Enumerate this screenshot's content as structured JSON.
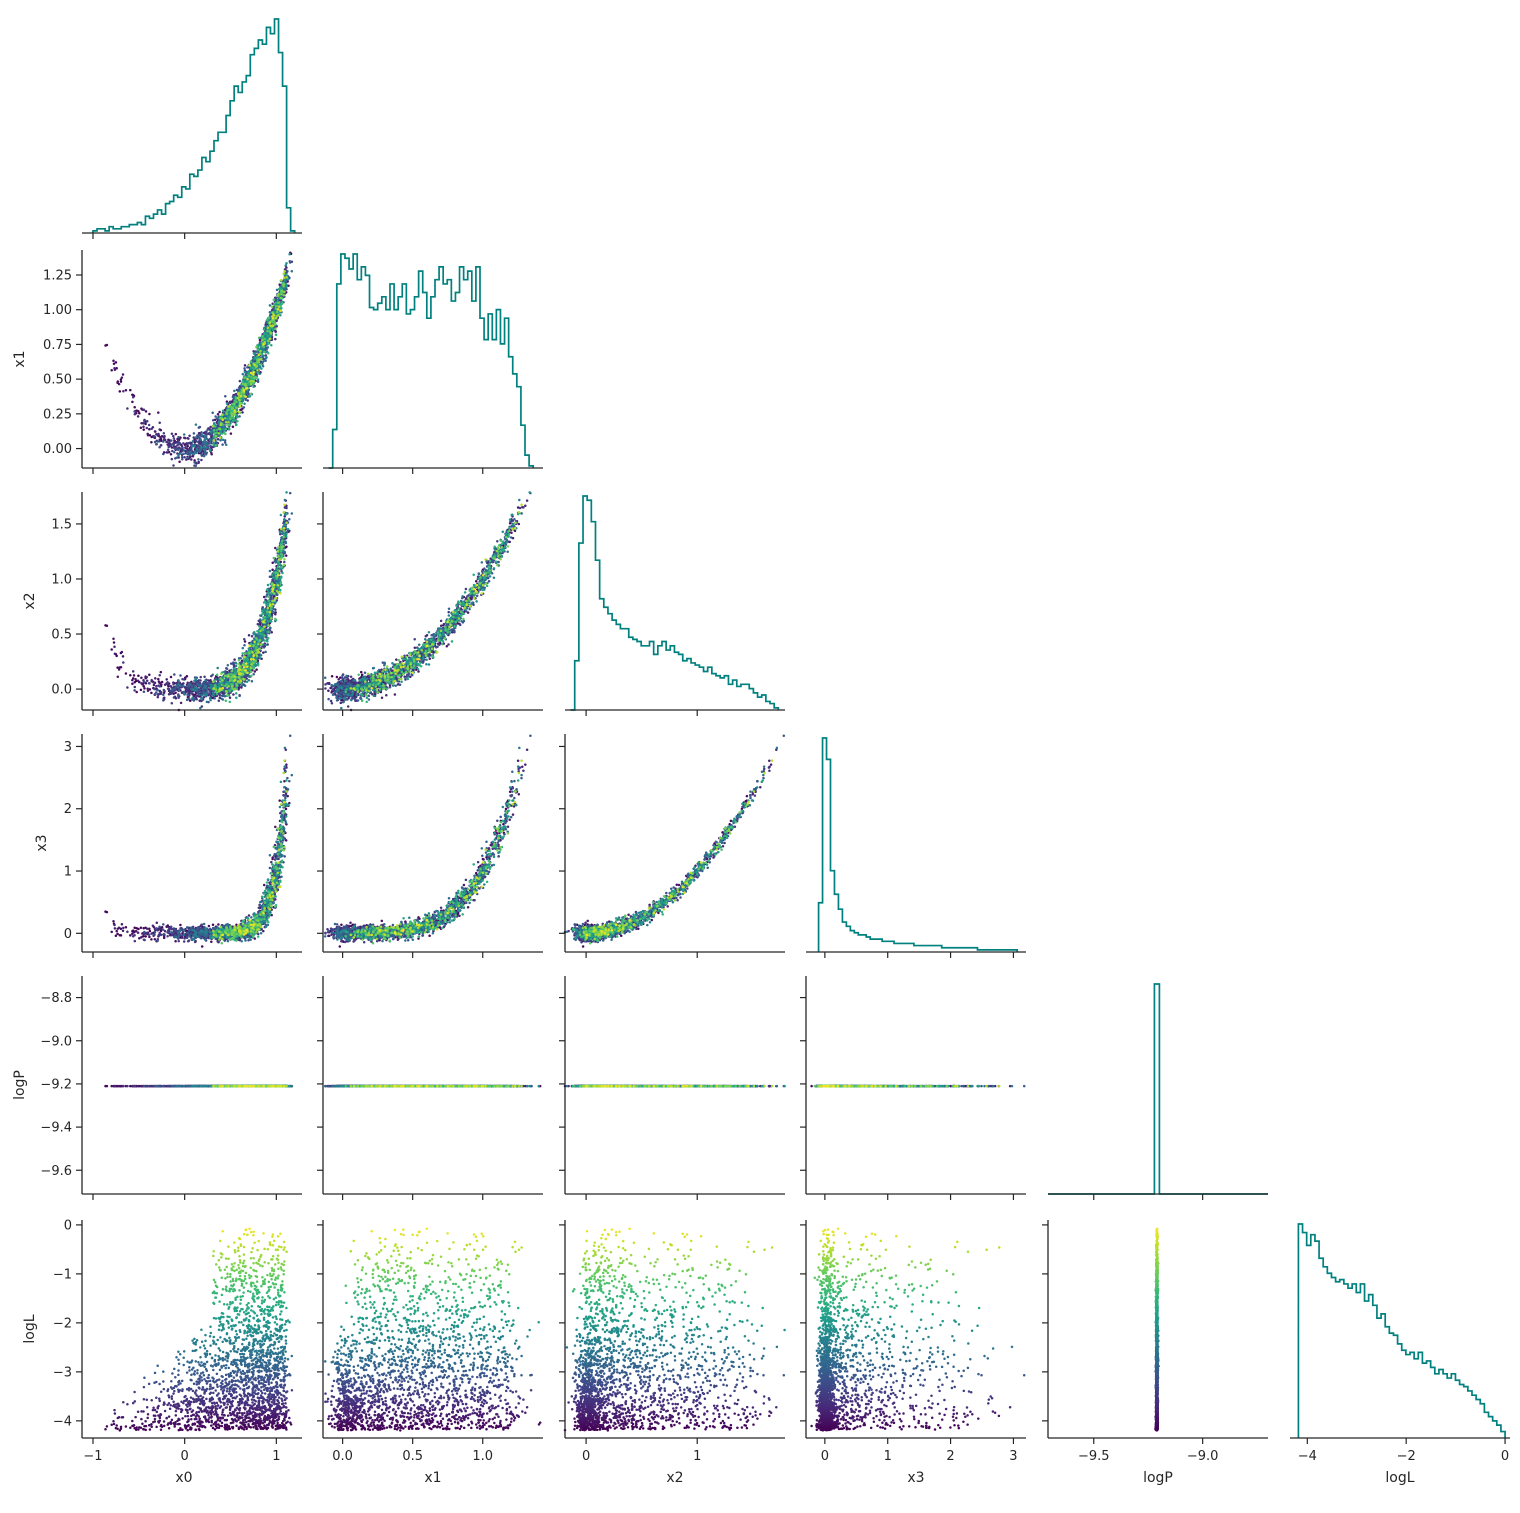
{
  "chart_data": {
    "type": "corner",
    "variables": [
      "x0",
      "x1",
      "x2",
      "x3",
      "logP",
      "logL"
    ],
    "axis_labels": [
      "x0",
      "x1",
      "x2",
      "x3",
      "logP",
      "logL"
    ],
    "ranges": {
      "x0": [
        -1.12,
        1.28
      ],
      "x1": [
        -0.14,
        1.43
      ],
      "x2": [
        -0.19,
        1.79
      ],
      "x3": [
        -0.3,
        3.2
      ],
      "logP": [
        -9.71,
        -8.7
      ],
      "logL": [
        -4.35,
        0.1
      ]
    },
    "ticks": {
      "x0": {
        "values": [
          -1,
          0,
          1
        ],
        "labels": [
          "−1",
          "0",
          "1"
        ]
      },
      "x1": {
        "values": [
          0.0,
          0.5,
          1.0
        ],
        "labels": [
          "0.0",
          "0.5",
          "1.0"
        ]
      },
      "x1_left": {
        "values": [
          0.0,
          0.25,
          0.5,
          0.75,
          1.0,
          1.25
        ],
        "labels": [
          "0.00",
          "0.25",
          "0.50",
          "0.75",
          "1.00",
          "1.25"
        ]
      },
      "x2": {
        "values": [
          0,
          1
        ],
        "labels": [
          "0",
          "1"
        ]
      },
      "x2_left": {
        "values": [
          0.0,
          0.5,
          1.0,
          1.5
        ],
        "labels": [
          "0.0",
          "0.5",
          "1.0",
          "1.5"
        ]
      },
      "x3": {
        "values": [
          0,
          1,
          2,
          3
        ],
        "labels": [
          "0",
          "1",
          "2",
          "3"
        ]
      },
      "logP_x": {
        "values": [
          -9.5,
          -9.0
        ],
        "labels": [
          "−9.5",
          "−9.0"
        ]
      },
      "logP_left": {
        "values": [
          -9.6,
          -9.4,
          -9.2,
          -9.0,
          -8.8
        ],
        "labels": [
          "−9.6",
          "−9.4",
          "−9.2",
          "−9.0",
          "−8.8"
        ]
      },
      "logL": {
        "values": [
          -4,
          -2,
          0
        ],
        "labels": [
          "−4",
          "−2",
          "0"
        ]
      },
      "logL_left": {
        "values": [
          -4,
          -3,
          -2,
          -1,
          0
        ],
        "labels": [
          "−4",
          "−3",
          "−2",
          "−1",
          "0"
        ]
      }
    },
    "logP_constant": -9.21,
    "histograms": {
      "x0": {
        "range": [
          -1.0,
          1.2
        ],
        "bins": 50,
        "counts": [
          1,
          2,
          2,
          1,
          3,
          2,
          2,
          3,
          3,
          4,
          4,
          5,
          4,
          8,
          7,
          9,
          11,
          9,
          14,
          15,
          18,
          17,
          22,
          21,
          28,
          27,
          30,
          36,
          34,
          39,
          44,
          48,
          48,
          56,
          63,
          70,
          67,
          72,
          75,
          85,
          88,
          92,
          90,
          98,
          95,
          102,
          86,
          70,
          12,
          1
        ]
      },
      "x1": {
        "range": [
          -0.1,
          1.36
        ],
        "bins": 50,
        "counts": [
          0,
          18,
          86,
          100,
          98,
          93,
          100,
          88,
          94,
          90,
          75,
          74,
          77,
          80,
          74,
          86,
          74,
          80,
          86,
          72,
          74,
          80,
          92,
          82,
          70,
          80,
          88,
          94,
          86,
          88,
          78,
          82,
          94,
          88,
          92,
          78,
          94,
          70,
          60,
          72,
          60,
          74,
          58,
          70,
          52,
          44,
          38,
          20,
          6,
          1
        ]
      },
      "x2": {
        "range": [
          -0.14,
          1.73
        ],
        "bins": 50,
        "counts": [
          0,
          23,
          78,
          100,
          98,
          88,
          70,
          52,
          48,
          45,
          42,
          40,
          38,
          38,
          34,
          33,
          32,
          30,
          30,
          32,
          26,
          30,
          32,
          28,
          30,
          27,
          26,
          23,
          24,
          22,
          21,
          20,
          18,
          20,
          17,
          16,
          15,
          16,
          12,
          14,
          11,
          12,
          12,
          10,
          8,
          6,
          7,
          4,
          3,
          1
        ]
      },
      "x3": {
        "range": [
          -0.1,
          3.06
        ],
        "bins": 50,
        "counts": [
          23,
          100,
          90,
          38,
          27,
          20,
          14,
          12,
          10,
          9,
          8,
          8,
          7,
          6,
          6,
          6,
          5,
          5,
          5,
          4,
          4,
          4,
          4,
          4,
          3,
          3,
          3,
          3,
          3,
          3,
          3,
          2,
          2,
          2,
          2,
          2,
          2,
          2,
          2,
          2,
          1,
          1,
          1,
          1,
          1,
          1,
          1,
          1,
          1,
          1
        ]
      },
      "logL": {
        "range": [
          -4.18,
          0.0
        ],
        "bins": 50,
        "counts": [
          100,
          96,
          90,
          95,
          92,
          84,
          80,
          77,
          75,
          73,
          74,
          72,
          70,
          72,
          68,
          72,
          64,
          67,
          62,
          56,
          58,
          52,
          49,
          48,
          44,
          41,
          39,
          40,
          37,
          40,
          35,
          36,
          33,
          30,
          32,
          30,
          28,
          30,
          27,
          25,
          24,
          22,
          20,
          18,
          16,
          12,
          10,
          8,
          6,
          3
        ]
      },
      "logP": {
        "value": -9.21
      }
    },
    "colormap": "viridis",
    "color_variable": "logL",
    "hist_color": "#00807f"
  }
}
